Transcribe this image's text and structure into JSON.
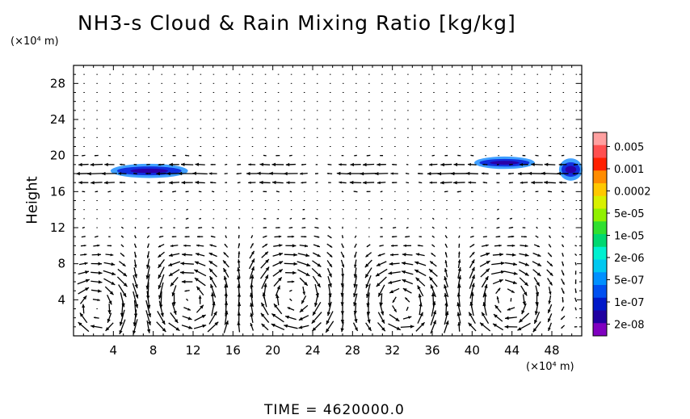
{
  "chart_data": {
    "type": "contour-vector",
    "title": "NH3-s Cloud & Rain Mixing Ratio [kg/kg]",
    "ylabel": "Height",
    "x_unit_label": "(×10⁴ m)",
    "y_unit_label": "(×10⁴ m)",
    "time_label": "TIME  =  4620000.0",
    "xlim": [
      0,
      51
    ],
    "ylim": [
      0,
      30
    ],
    "xticks": [
      4,
      8,
      12,
      16,
      20,
      24,
      28,
      32,
      36,
      40,
      44,
      48
    ],
    "yticks": [
      4,
      8,
      12,
      16,
      20,
      24,
      28
    ],
    "colorbar": {
      "labels": [
        "0.005",
        "0.001",
        "0.0002",
        "5e-05",
        "1e-05",
        "2e-06",
        "5e-07",
        "1e-07",
        "2e-08"
      ],
      "colors": [
        "#ffa0a0",
        "#ff5050",
        "#ff2000",
        "#ff8c00",
        "#ffc800",
        "#d8f000",
        "#90f000",
        "#30e030",
        "#00d870",
        "#00f0d0",
        "#00c8f0",
        "#0090ff",
        "#0050f0",
        "#0018c8",
        "#2000a0",
        "#8000c0"
      ]
    },
    "cloud_regions": [
      {
        "x_range": [
          3.8,
          11.4
        ],
        "y_range": [
          17.6,
          19.0
        ]
      },
      {
        "x_range": [
          40.3,
          46.2
        ],
        "y_range": [
          18.6,
          19.8
        ]
      },
      {
        "x_range": [
          48.8,
          51.0
        ],
        "y_range": [
          17.3,
          19.6
        ]
      }
    ],
    "circulation_cells": [
      {
        "x": 2.5,
        "y": 3,
        "direction": "clockwise"
      },
      {
        "x": 11.5,
        "y": 4,
        "direction": "counterclockwise"
      },
      {
        "x": 22,
        "y": 4.5,
        "direction": "clockwise"
      },
      {
        "x": 33,
        "y": 3.5,
        "direction": "counterclockwise"
      },
      {
        "x": 43.5,
        "y": 4,
        "direction": "clockwise"
      }
    ],
    "jet": {
      "y": 18,
      "x_range": [
        0,
        51
      ],
      "direction": "westward",
      "max_speed": 1
    }
  }
}
